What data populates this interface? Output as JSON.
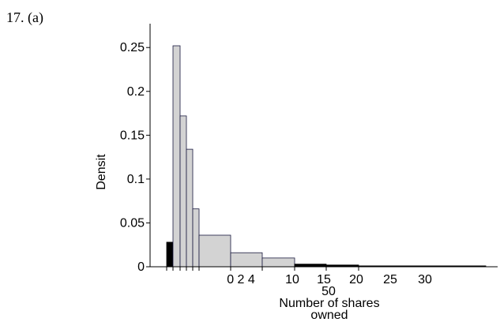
{
  "problem_label": "17. (a)",
  "chart_data": {
    "type": "bar",
    "ylabel": "Densit",
    "xlabel_lines": [
      "Number of shares",
      "owned"
    ],
    "y_ticks": [
      {
        "value": 0,
        "label": "0"
      },
      {
        "value": 0.05,
        "label": "0.05"
      },
      {
        "value": 0.1,
        "label": "0.1"
      },
      {
        "value": 0.15,
        "label": "0.15"
      },
      {
        "value": 0.2,
        "label": "0.2"
      },
      {
        "value": 0.25,
        "label": "0.25"
      }
    ],
    "ylim": [
      0,
      0.27
    ],
    "x_tick_labels": [
      "0 2 4",
      "10",
      "15",
      "20",
      "25",
      "30",
      "50"
    ],
    "bars": [
      {
        "density": 0.028,
        "color": "#000000"
      },
      {
        "density": 0.252,
        "color": "#d3d3d3"
      },
      {
        "density": 0.172,
        "color": "#d3d3d3"
      },
      {
        "density": 0.134,
        "color": "#d3d3d3"
      },
      {
        "density": 0.066,
        "color": "#d3d3d3"
      },
      {
        "density": 0.036,
        "color": "#d3d3d3"
      },
      {
        "density": 0.016,
        "color": "#d3d3d3"
      },
      {
        "density": 0.01,
        "color": "#d3d3d3"
      },
      {
        "density": 0.003,
        "color": "#000000"
      },
      {
        "density": 0.002,
        "color": "#000000"
      },
      {
        "density": 0.001,
        "color": "#000000"
      },
      {
        "density": 0.001,
        "color": "#000000"
      }
    ]
  }
}
